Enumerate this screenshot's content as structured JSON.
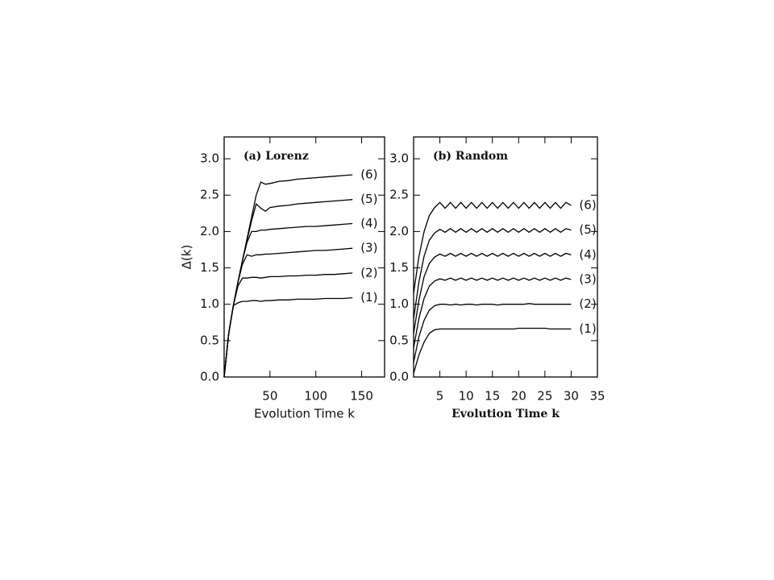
{
  "chart_data": [
    {
      "type": "line",
      "title": "(a) Lorenz",
      "xlabel": "Evolution Time k",
      "ylabel": "Δ(k)",
      "x": [
        0,
        5,
        10,
        15,
        20,
        25,
        30,
        35,
        40,
        45,
        50,
        60,
        70,
        80,
        90,
        100,
        110,
        120,
        130,
        140
      ],
      "xlim": [
        0,
        175
      ],
      "xticks": [
        50,
        100,
        150
      ],
      "ylim": [
        0,
        3.3
      ],
      "yticks": [
        {
          "value": 0,
          "label": "0.0"
        },
        0.5,
        {
          "value": 1,
          "label": "1.0"
        },
        1.5,
        {
          "value": 2,
          "label": "2.0"
        },
        2.5,
        {
          "value": 3,
          "label": "3.0"
        }
      ],
      "series": [
        {
          "name": "(1)",
          "color": "#000000",
          "values": [
            0,
            0.6,
            0.98,
            1.02,
            1.04,
            1.04,
            1.05,
            1.05,
            1.04,
            1.05,
            1.05,
            1.06,
            1.06,
            1.07,
            1.07,
            1.07,
            1.08,
            1.08,
            1.08,
            1.09
          ]
        },
        {
          "name": "(2)",
          "color": "#000000",
          "values": [
            0,
            0.6,
            0.98,
            1.25,
            1.36,
            1.36,
            1.37,
            1.37,
            1.36,
            1.37,
            1.38,
            1.38,
            1.39,
            1.39,
            1.4,
            1.4,
            1.41,
            1.41,
            1.42,
            1.43
          ]
        },
        {
          "name": "(3)",
          "color": "#000000",
          "values": [
            0,
            0.6,
            0.98,
            1.3,
            1.55,
            1.68,
            1.66,
            1.68,
            1.68,
            1.69,
            1.69,
            1.7,
            1.71,
            1.72,
            1.73,
            1.74,
            1.74,
            1.75,
            1.76,
            1.77
          ]
        },
        {
          "name": "(4)",
          "color": "#000000",
          "values": [
            0,
            0.6,
            0.98,
            1.3,
            1.6,
            1.85,
            2.0,
            2.0,
            2.02,
            2.02,
            2.03,
            2.04,
            2.05,
            2.06,
            2.07,
            2.07,
            2.08,
            2.09,
            2.1,
            2.11
          ]
        },
        {
          "name": "(5)",
          "color": "#000000",
          "values": [
            0,
            0.6,
            0.98,
            1.3,
            1.6,
            1.88,
            2.15,
            2.38,
            2.32,
            2.28,
            2.33,
            2.35,
            2.36,
            2.38,
            2.39,
            2.4,
            2.41,
            2.42,
            2.43,
            2.44
          ]
        },
        {
          "name": "(6)",
          "color": "#000000",
          "values": [
            0,
            0.6,
            0.98,
            1.3,
            1.6,
            1.9,
            2.2,
            2.5,
            2.68,
            2.65,
            2.66,
            2.69,
            2.7,
            2.72,
            2.73,
            2.74,
            2.75,
            2.76,
            2.77,
            2.78
          ]
        }
      ]
    },
    {
      "type": "line",
      "title": "(b) Random",
      "xlabel": "Evolution Time k",
      "x": [
        0,
        1,
        2,
        3,
        4,
        5,
        6,
        7,
        8,
        9,
        10,
        11,
        12,
        13,
        14,
        15,
        16,
        17,
        18,
        19,
        20,
        21,
        22,
        23,
        24,
        25,
        26,
        27,
        28,
        29,
        30
      ],
      "xlim": [
        0,
        35
      ],
      "xticks": [
        5,
        10,
        15,
        20,
        25,
        30,
        35
      ],
      "ylim": [
        0,
        3.3
      ],
      "yticks": [
        {
          "value": 0,
          "label": "0.0"
        },
        0.5,
        {
          "value": 1,
          "label": "1.0"
        },
        1.5,
        {
          "value": 2,
          "label": "2.0"
        },
        2.5,
        {
          "value": 3,
          "label": "3.0"
        }
      ],
      "series": [
        {
          "name": "(1)",
          "color": "#000000",
          "values": [
            0.05,
            0.3,
            0.48,
            0.6,
            0.65,
            0.66,
            0.66,
            0.66,
            0.66,
            0.66,
            0.66,
            0.66,
            0.66,
            0.66,
            0.66,
            0.66,
            0.66,
            0.66,
            0.66,
            0.66,
            0.67,
            0.67,
            0.67,
            0.67,
            0.67,
            0.67,
            0.66,
            0.66,
            0.66,
            0.66,
            0.66
          ]
        },
        {
          "name": "(2)",
          "color": "#000000",
          "values": [
            0.2,
            0.55,
            0.78,
            0.92,
            0.98,
            1.0,
            1.0,
            0.99,
            1.0,
            0.99,
            1.0,
            1.0,
            0.99,
            1.0,
            1.0,
            1.0,
            0.99,
            1.0,
            1.0,
            1.0,
            1.0,
            1.0,
            1.01,
            1.0,
            1.0,
            1.0,
            1.0,
            1.0,
            1.0,
            1.0,
            1.0
          ]
        },
        {
          "name": "(3)",
          "color": "#000000",
          "values": [
            0.4,
            0.8,
            1.08,
            1.25,
            1.32,
            1.35,
            1.33,
            1.36,
            1.33,
            1.36,
            1.33,
            1.36,
            1.33,
            1.36,
            1.33,
            1.36,
            1.33,
            1.36,
            1.33,
            1.36,
            1.33,
            1.36,
            1.33,
            1.36,
            1.33,
            1.36,
            1.33,
            1.36,
            1.33,
            1.36,
            1.34
          ]
        },
        {
          "name": "(4)",
          "color": "#000000",
          "values": [
            0.6,
            1.05,
            1.38,
            1.56,
            1.65,
            1.69,
            1.66,
            1.7,
            1.66,
            1.7,
            1.66,
            1.7,
            1.66,
            1.7,
            1.66,
            1.7,
            1.66,
            1.7,
            1.66,
            1.7,
            1.66,
            1.7,
            1.66,
            1.7,
            1.66,
            1.7,
            1.66,
            1.7,
            1.66,
            1.7,
            1.68
          ]
        },
        {
          "name": "(5)",
          "color": "#000000",
          "values": [
            0.8,
            1.3,
            1.66,
            1.88,
            1.98,
            2.03,
            1.99,
            2.04,
            1.99,
            2.04,
            1.99,
            2.04,
            1.99,
            2.04,
            1.99,
            2.04,
            1.99,
            2.04,
            1.99,
            2.04,
            1.99,
            2.04,
            1.99,
            2.04,
            1.99,
            2.04,
            1.99,
            2.04,
            1.99,
            2.04,
            2.02
          ]
        },
        {
          "name": "(6)",
          "color": "#000000",
          "values": [
            1.15,
            1.65,
            2.0,
            2.22,
            2.33,
            2.4,
            2.32,
            2.4,
            2.32,
            2.4,
            2.32,
            2.4,
            2.32,
            2.4,
            2.32,
            2.4,
            2.32,
            2.4,
            2.32,
            2.4,
            2.32,
            2.4,
            2.32,
            2.4,
            2.32,
            2.4,
            2.32,
            2.4,
            2.32,
            2.4,
            2.36
          ]
        }
      ]
    }
  ]
}
